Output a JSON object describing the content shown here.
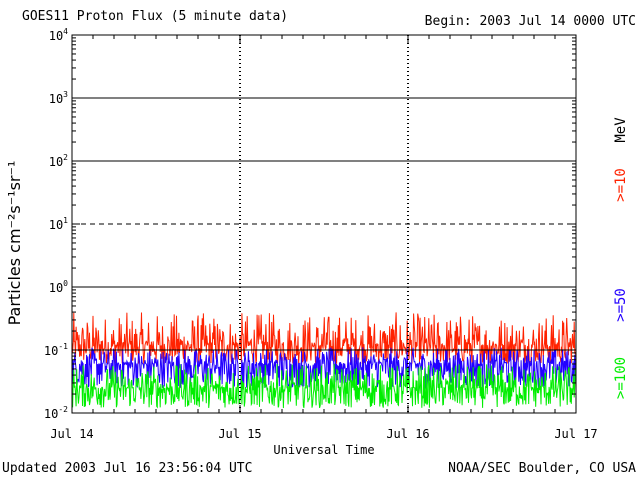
{
  "header": {
    "title": "GOES11 Proton Flux (5 minute data)",
    "begin": "Begin: 2003 Jul 14 0000 UTC"
  },
  "footer": {
    "updated": "Updated 2003 Jul 16 23:56:04 UTC",
    "credit": "NOAA/SEC Boulder, CO USA"
  },
  "chart_data": {
    "type": "line",
    "y_scale": "log",
    "ylim": [
      0.01,
      10000
    ],
    "xlim_days": [
      0,
      3
    ],
    "ylabel": "Particles cm⁻²s⁻¹sr⁻¹",
    "xlabel": "Universal Time",
    "x_ticks": [
      "Jul 14",
      "Jul 15",
      "Jul 16",
      "Jul 17"
    ],
    "y_ticks": [
      {
        "value": 0.01,
        "base": "10",
        "exp": "-2"
      },
      {
        "value": 0.1,
        "base": "10",
        "exp": "-1"
      },
      {
        "value": 1,
        "base": "10",
        "exp": "0"
      },
      {
        "value": 10,
        "base": "10",
        "exp": "1"
      },
      {
        "value": 100,
        "base": "10",
        "exp": "2"
      },
      {
        "value": 1000,
        "base": "10",
        "exp": "3"
      },
      {
        "value": 10000,
        "base": "10",
        "exp": "4"
      }
    ],
    "threshold_lines": [
      {
        "value": 0.1,
        "style": "solid"
      },
      {
        "value": 1,
        "style": "solid"
      },
      {
        "value": 10,
        "style": "dashed"
      },
      {
        "value": 100,
        "style": "solid"
      },
      {
        "value": 1000,
        "style": "solid"
      }
    ],
    "series": [
      {
        "name": ">=10",
        "color": "#ff2200",
        "typical_value": 0.12,
        "min_value": 0.06,
        "max_value": 0.4
      },
      {
        "name": ">=50",
        "color": "#2200ff",
        "typical_value": 0.06,
        "min_value": 0.025,
        "max_value": 0.11
      },
      {
        "name": ">=100",
        "color": "#00ee00",
        "typical_value": 0.025,
        "min_value": 0.012,
        "max_value": 0.06
      }
    ],
    "energy_unit": "MeV",
    "grid": false
  }
}
